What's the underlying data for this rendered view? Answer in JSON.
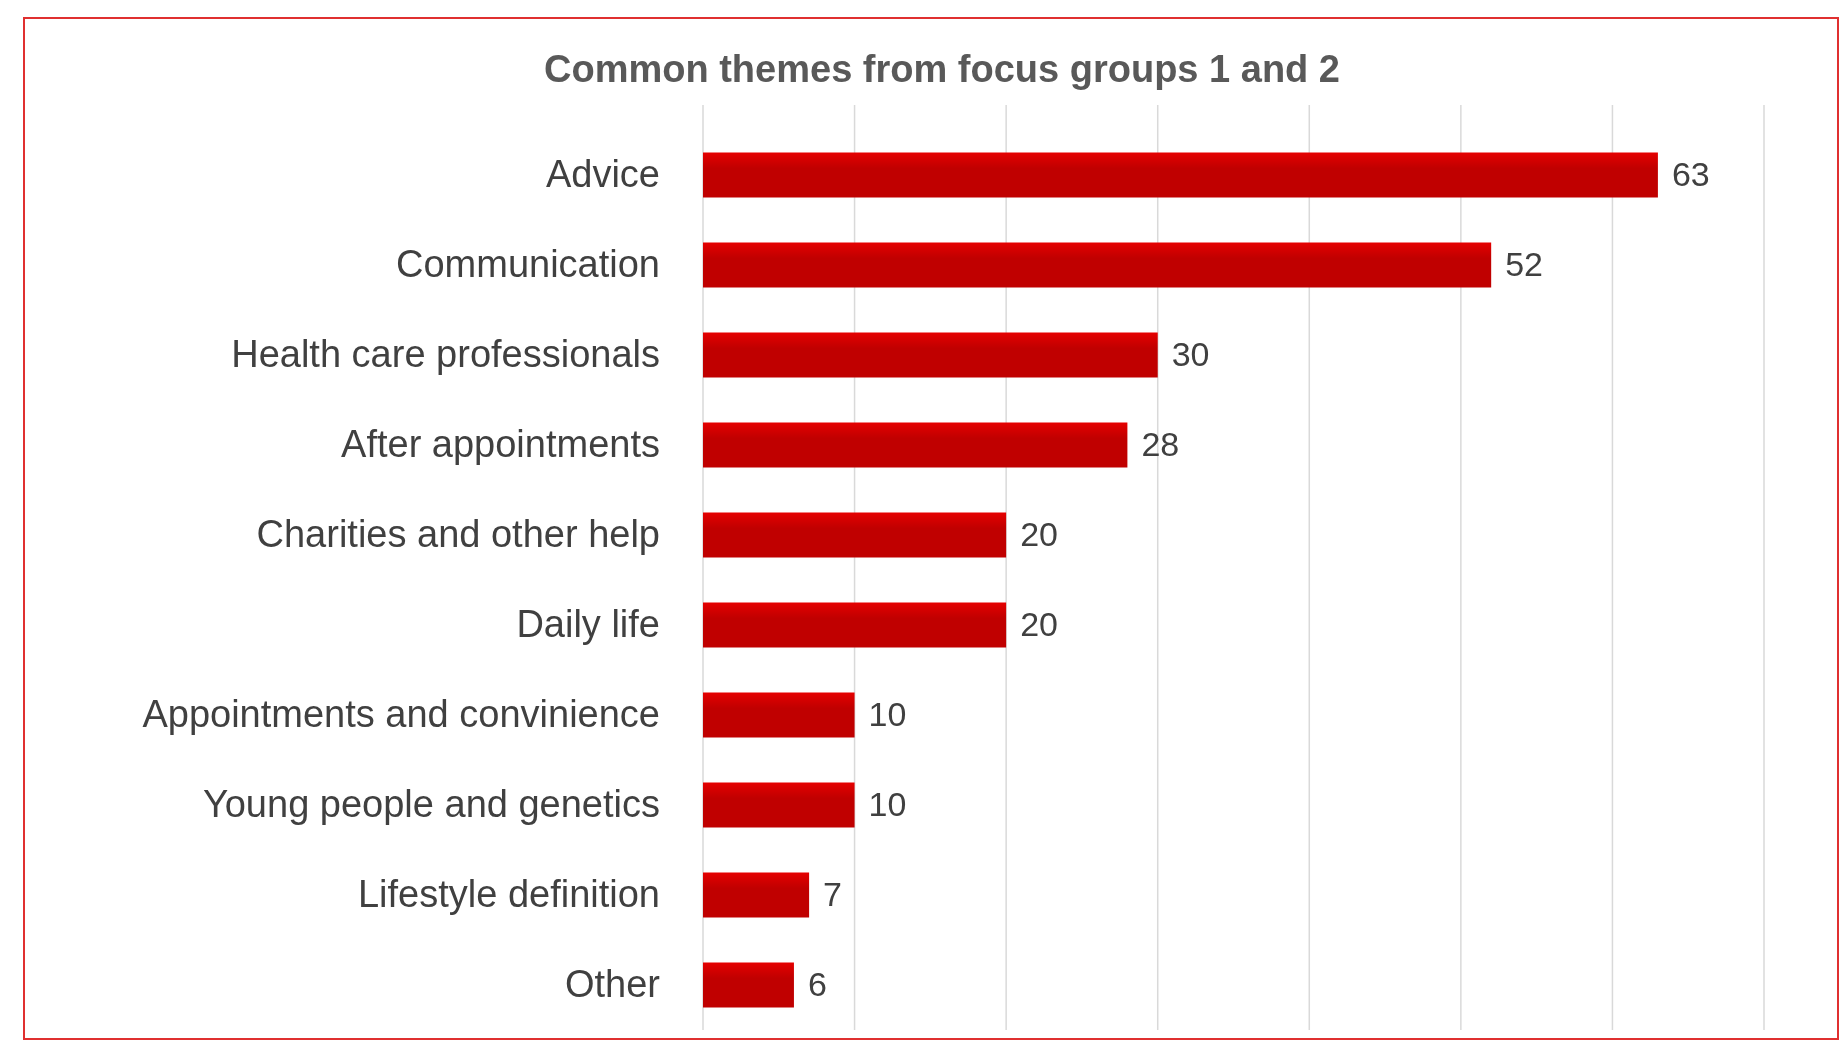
{
  "chart_data": {
    "type": "bar",
    "orientation": "horizontal",
    "title": "Common themes from focus groups 1 and 2",
    "categories": [
      "Advice",
      "Communication",
      "Health care professionals",
      "After appointments",
      "Charities and other help",
      "Daily life",
      "Appointments and convinience",
      "Young people and genetics",
      "Lifestyle definition",
      "Other"
    ],
    "values": [
      63,
      52,
      30,
      28,
      20,
      20,
      10,
      10,
      7,
      6
    ],
    "color": "#c00000",
    "xlim": [
      0,
      70
    ],
    "xticks": [
      {
        "value": 0,
        "label": null
      },
      {
        "value": 10,
        "label": null
      },
      {
        "value": 20,
        "label": null
      },
      {
        "value": 30,
        "label": null
      },
      {
        "value": 40,
        "label": null
      },
      {
        "value": 50,
        "label": null
      },
      {
        "value": 60,
        "label": null
      },
      {
        "value": 70,
        "label": null
      }
    ],
    "grid": "x",
    "tick_labels": "y",
    "data_labels": true
  }
}
